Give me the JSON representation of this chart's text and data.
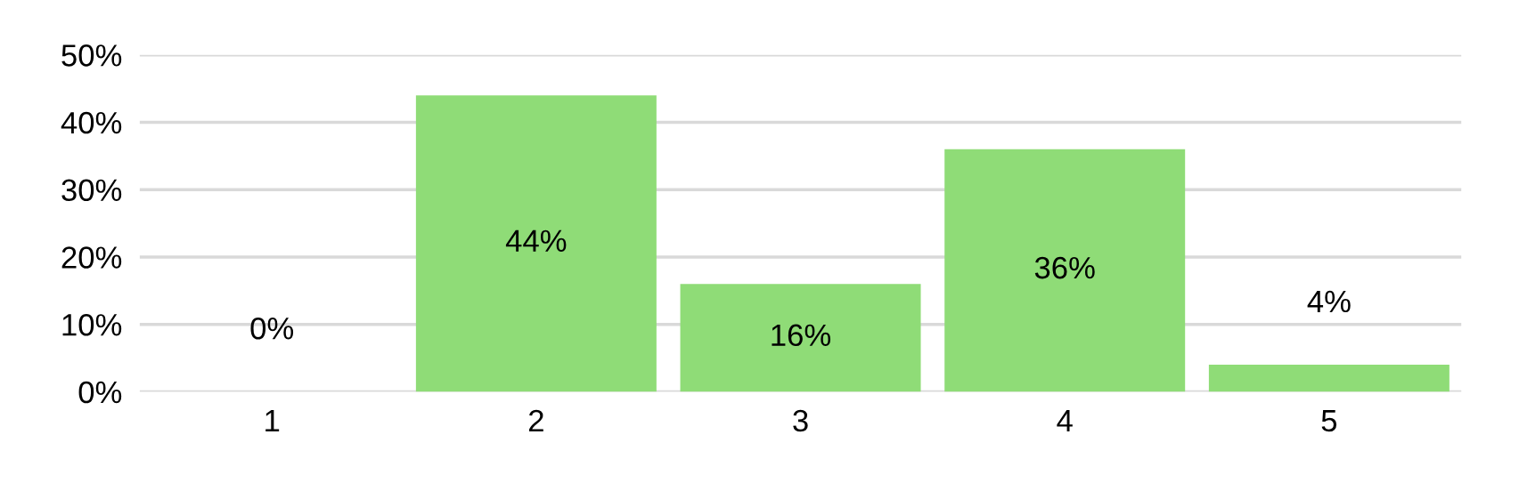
{
  "chart_data": {
    "type": "bar",
    "categories": [
      "1",
      "2",
      "3",
      "4",
      "5"
    ],
    "values": [
      0,
      44,
      16,
      36,
      4
    ],
    "value_labels": [
      "0%",
      "44%",
      "16%",
      "36%",
      "4%"
    ],
    "color": "#8fdc77",
    "ylim": [
      0,
      50
    ],
    "yticks": [
      {
        "value": 0,
        "label": "0%"
      },
      {
        "value": 10,
        "label": "10%"
      },
      {
        "value": 20,
        "label": "20%"
      },
      {
        "value": 30,
        "label": "30%"
      },
      {
        "value": 40,
        "label": "40%"
      },
      {
        "value": 50,
        "label": "50%"
      }
    ],
    "grid": "y"
  }
}
